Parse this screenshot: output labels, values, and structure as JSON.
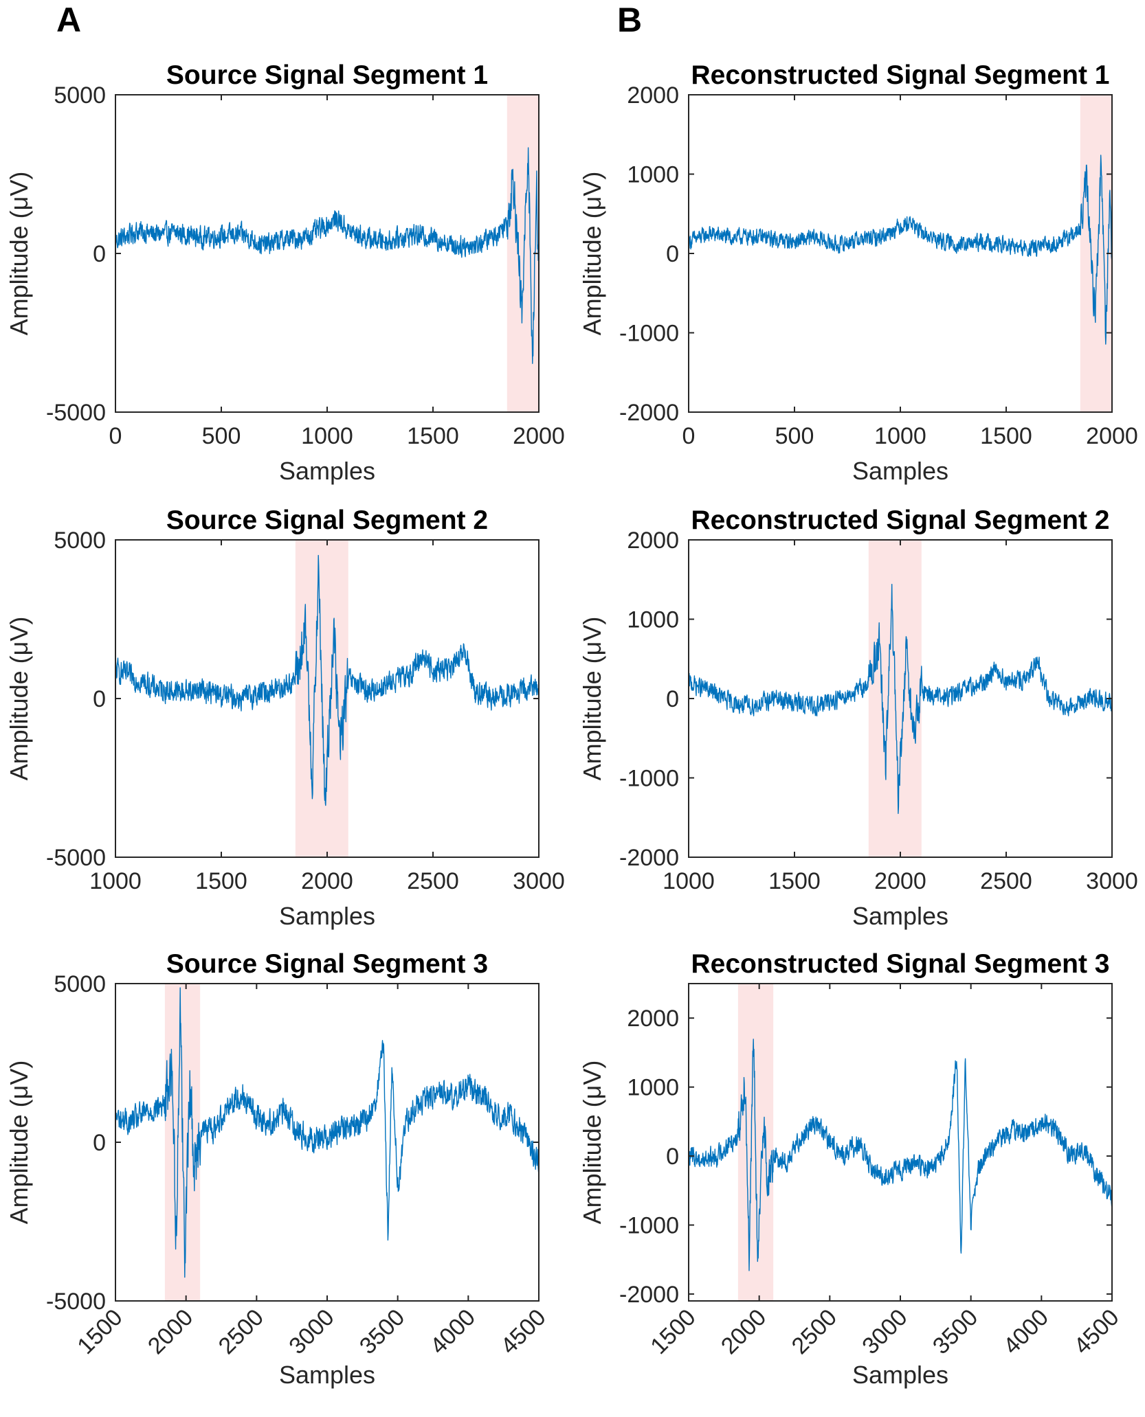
{
  "panel_labels": [
    "A",
    "B"
  ],
  "chart_data": [
    {
      "type": "line",
      "panel": "A",
      "row": 0,
      "title": "Source Signal Segment 1",
      "xlabel": "Samples",
      "ylabel": "Amplitude (μV)",
      "xlim": [
        0,
        2000
      ],
      "ylim": [
        -5000,
        5000
      ],
      "xticks": [
        "0",
        "500",
        "1000",
        "1500",
        "2000"
      ],
      "yticks": [
        "-5000",
        "0",
        "5000"
      ],
      "highlight": [
        1850,
        2000
      ],
      "series": [
        {
          "values": [
            [
              0,
              400
            ],
            [
              100,
              700
            ],
            [
              200,
              600
            ],
            [
              300,
              650
            ],
            [
              400,
              500
            ],
            [
              500,
              550
            ],
            [
              600,
              600
            ],
            [
              700,
              250
            ],
            [
              800,
              450
            ],
            [
              900,
              500
            ],
            [
              1000,
              900
            ],
            [
              1050,
              1100
            ],
            [
              1100,
              700
            ],
            [
              1200,
              450
            ],
            [
              1300,
              400
            ],
            [
              1400,
              600
            ],
            [
              1500,
              500
            ],
            [
              1600,
              250
            ],
            [
              1700,
              250
            ],
            [
              1800,
              600
            ],
            [
              1850,
              1000
            ],
            [
              1880,
              2500
            ],
            [
              1920,
              -2000
            ],
            [
              1950,
              3500
            ],
            [
              1970,
              -3500
            ],
            [
              1990,
              2000
            ],
            [
              2000,
              -500
            ]
          ]
        }
      ],
      "series_noise": 450
    },
    {
      "type": "line",
      "panel": "B",
      "row": 0,
      "title": "Reconstructed Signal Segment 1",
      "xlabel": "Samples",
      "ylabel": "Amplitude (μV)",
      "xlim": [
        0,
        2000
      ],
      "ylim": [
        -2000,
        2000
      ],
      "xticks": [
        "0",
        "500",
        "1000",
        "1500",
        "2000"
      ],
      "yticks": [
        "-2000",
        "-1000",
        "0",
        "1000",
        "2000"
      ],
      "highlight": [
        1850,
        2000
      ],
      "series": [
        {
          "values": [
            [
              0,
              150
            ],
            [
              100,
              250
            ],
            [
              200,
              200
            ],
            [
              300,
              220
            ],
            [
              400,
              180
            ],
            [
              500,
              150
            ],
            [
              600,
              200
            ],
            [
              700,
              100
            ],
            [
              800,
              180
            ],
            [
              900,
              200
            ],
            [
              1000,
              350
            ],
            [
              1050,
              400
            ],
            [
              1100,
              250
            ],
            [
              1200,
              150
            ],
            [
              1300,
              100
            ],
            [
              1400,
              150
            ],
            [
              1500,
              100
            ],
            [
              1600,
              50
            ],
            [
              1700,
              100
            ],
            [
              1800,
              200
            ],
            [
              1850,
              300
            ],
            [
              1880,
              900
            ],
            [
              1920,
              -800
            ],
            [
              1950,
              1200
            ],
            [
              1970,
              -1000
            ],
            [
              1990,
              800
            ],
            [
              2000,
              -200
            ]
          ]
        }
      ],
      "series_noise": 140
    },
    {
      "type": "line",
      "panel": "A",
      "row": 1,
      "title": "Source Signal Segment 2",
      "xlabel": "Samples",
      "ylabel": "Amplitude (μV)",
      "xlim": [
        1000,
        3000
      ],
      "ylim": [
        -5000,
        5000
      ],
      "xticks": [
        "1000",
        "1500",
        "2000",
        "2500",
        "3000"
      ],
      "yticks": [
        "-5000",
        "0",
        "5000"
      ],
      "highlight": [
        1850,
        2100
      ],
      "series": [
        {
          "values": [
            [
              1000,
              900
            ],
            [
              1100,
              600
            ],
            [
              1200,
              300
            ],
            [
              1300,
              200
            ],
            [
              1400,
              300
            ],
            [
              1500,
              100
            ],
            [
              1600,
              0
            ],
            [
              1700,
              200
            ],
            [
              1800,
              400
            ],
            [
              1850,
              600
            ],
            [
              1900,
              2000
            ],
            [
              1930,
              -2500
            ],
            [
              1960,
              4000
            ],
            [
              1990,
              -3500
            ],
            [
              2030,
              2200
            ],
            [
              2060,
              -1500
            ],
            [
              2100,
              600
            ],
            [
              2200,
              200
            ],
            [
              2300,
              500
            ],
            [
              2400,
              800
            ],
            [
              2450,
              1400
            ],
            [
              2500,
              900
            ],
            [
              2600,
              1000
            ],
            [
              2650,
              1500
            ],
            [
              2700,
              200
            ],
            [
              2800,
              0
            ],
            [
              2900,
              200
            ],
            [
              3000,
              400
            ]
          ]
        }
      ],
      "series_noise": 500
    },
    {
      "type": "line",
      "panel": "B",
      "row": 1,
      "title": "Reconstructed Signal Segment 2",
      "xlabel": "Samples",
      "ylabel": "Amplitude (μV)",
      "xlim": [
        1000,
        3000
      ],
      "ylim": [
        -2000,
        2000
      ],
      "xticks": [
        "1000",
        "1500",
        "2000",
        "2500",
        "3000"
      ],
      "yticks": [
        "-2000",
        "-1000",
        "0",
        "1000",
        "2000"
      ],
      "highlight": [
        1850,
        2100
      ],
      "series": [
        {
          "values": [
            [
              1000,
              200
            ],
            [
              1100,
              100
            ],
            [
              1200,
              -50
            ],
            [
              1300,
              -100
            ],
            [
              1400,
              0
            ],
            [
              1500,
              -50
            ],
            [
              1600,
              -100
            ],
            [
              1700,
              0
            ],
            [
              1800,
              100
            ],
            [
              1850,
              200
            ],
            [
              1900,
              700
            ],
            [
              1930,
              -900
            ],
            [
              1960,
              1300
            ],
            [
              1990,
              -1300
            ],
            [
              2030,
              700
            ],
            [
              2060,
              -500
            ],
            [
              2100,
              100
            ],
            [
              2200,
              0
            ],
            [
              2300,
              100
            ],
            [
              2400,
              200
            ],
            [
              2450,
              400
            ],
            [
              2500,
              200
            ],
            [
              2600,
              250
            ],
            [
              2650,
              450
            ],
            [
              2700,
              0
            ],
            [
              2800,
              -100
            ],
            [
              2900,
              0
            ],
            [
              3000,
              -50
            ]
          ]
        }
      ],
      "series_noise": 160
    },
    {
      "type": "line",
      "panel": "A",
      "row": 2,
      "title": "Source Signal Segment 3",
      "xlabel": "Samples",
      "ylabel": "Amplitude (μV)",
      "xlim": [
        1500,
        4500
      ],
      "ylim": [
        -5000,
        5000
      ],
      "xticks": [
        "1500",
        "2000",
        "2500",
        "3000",
        "3500",
        "4000",
        "4500"
      ],
      "yticks": [
        "-5000",
        "0",
        "5000"
      ],
      "highlight": [
        1850,
        2100
      ],
      "series": [
        {
          "values": [
            [
              1500,
              800
            ],
            [
              1600,
              600
            ],
            [
              1700,
              900
            ],
            [
              1800,
              1100
            ],
            [
              1850,
              1200
            ],
            [
              1900,
              2500
            ],
            [
              1930,
              -3000
            ],
            [
              1960,
              4500
            ],
            [
              1990,
              -3500
            ],
            [
              2030,
              2000
            ],
            [
              2060,
              -1000
            ],
            [
              2100,
              400
            ],
            [
              2200,
              400
            ],
            [
              2300,
              1200
            ],
            [
              2400,
              1500
            ],
            [
              2500,
              800
            ],
            [
              2600,
              600
            ],
            [
              2700,
              1000
            ],
            [
              2800,
              300
            ],
            [
              2900,
              100
            ],
            [
              3000,
              200
            ],
            [
              3100,
              400
            ],
            [
              3200,
              500
            ],
            [
              3300,
              800
            ],
            [
              3350,
              1500
            ],
            [
              3400,
              3000
            ],
            [
              3430,
              -3000
            ],
            [
              3460,
              2500
            ],
            [
              3500,
              -1500
            ],
            [
              3550,
              500
            ],
            [
              3600,
              1000
            ],
            [
              3700,
              1300
            ],
            [
              3800,
              1600
            ],
            [
              3900,
              1400
            ],
            [
              4000,
              1800
            ],
            [
              4100,
              1500
            ],
            [
              4200,
              800
            ],
            [
              4300,
              900
            ],
            [
              4400,
              200
            ],
            [
              4500,
              -700
            ]
          ]
        }
      ],
      "series_noise": 550
    },
    {
      "type": "line",
      "panel": "B",
      "row": 2,
      "title": "Reconstructed Signal Segment 3",
      "xlabel": "Samples",
      "ylabel": "Amplitude (μV)",
      "xlim": [
        1500,
        4500
      ],
      "ylim": [
        -2100,
        2500
      ],
      "xticks": [
        "1500",
        "2000",
        "2500",
        "3000",
        "3500",
        "4000",
        "4500"
      ],
      "yticks": [
        "-2000",
        "-1000",
        "0",
        "1000",
        "2000"
      ],
      "highlight": [
        1850,
        2100
      ],
      "series": [
        {
          "values": [
            [
              1500,
              0
            ],
            [
              1600,
              -50
            ],
            [
              1700,
              0
            ],
            [
              1800,
              200
            ],
            [
              1850,
              300
            ],
            [
              1900,
              1200
            ],
            [
              1930,
              -1500
            ],
            [
              1960,
              1800
            ],
            [
              1990,
              -1700
            ],
            [
              2030,
              700
            ],
            [
              2060,
              -500
            ],
            [
              2100,
              0
            ],
            [
              2200,
              -100
            ],
            [
              2300,
              300
            ],
            [
              2400,
              500
            ],
            [
              2500,
              200
            ],
            [
              2600,
              0
            ],
            [
              2700,
              200
            ],
            [
              2800,
              -200
            ],
            [
              2900,
              -300
            ],
            [
              3000,
              -200
            ],
            [
              3100,
              -100
            ],
            [
              3200,
              -200
            ],
            [
              3300,
              0
            ],
            [
              3350,
              300
            ],
            [
              3400,
              1500
            ],
            [
              3430,
              -1600
            ],
            [
              3460,
              1400
            ],
            [
              3500,
              -1000
            ],
            [
              3550,
              -200
            ],
            [
              3600,
              0
            ],
            [
              3700,
              200
            ],
            [
              3800,
              400
            ],
            [
              3900,
              300
            ],
            [
              4000,
              500
            ],
            [
              4100,
              400
            ],
            [
              4200,
              0
            ],
            [
              4300,
              100
            ],
            [
              4400,
              -300
            ],
            [
              4500,
              -600
            ]
          ]
        }
      ],
      "series_noise": 200
    }
  ],
  "colors": {
    "line": "#0072BD",
    "highlight": "#FCE4E4",
    "axes": "#262626"
  }
}
